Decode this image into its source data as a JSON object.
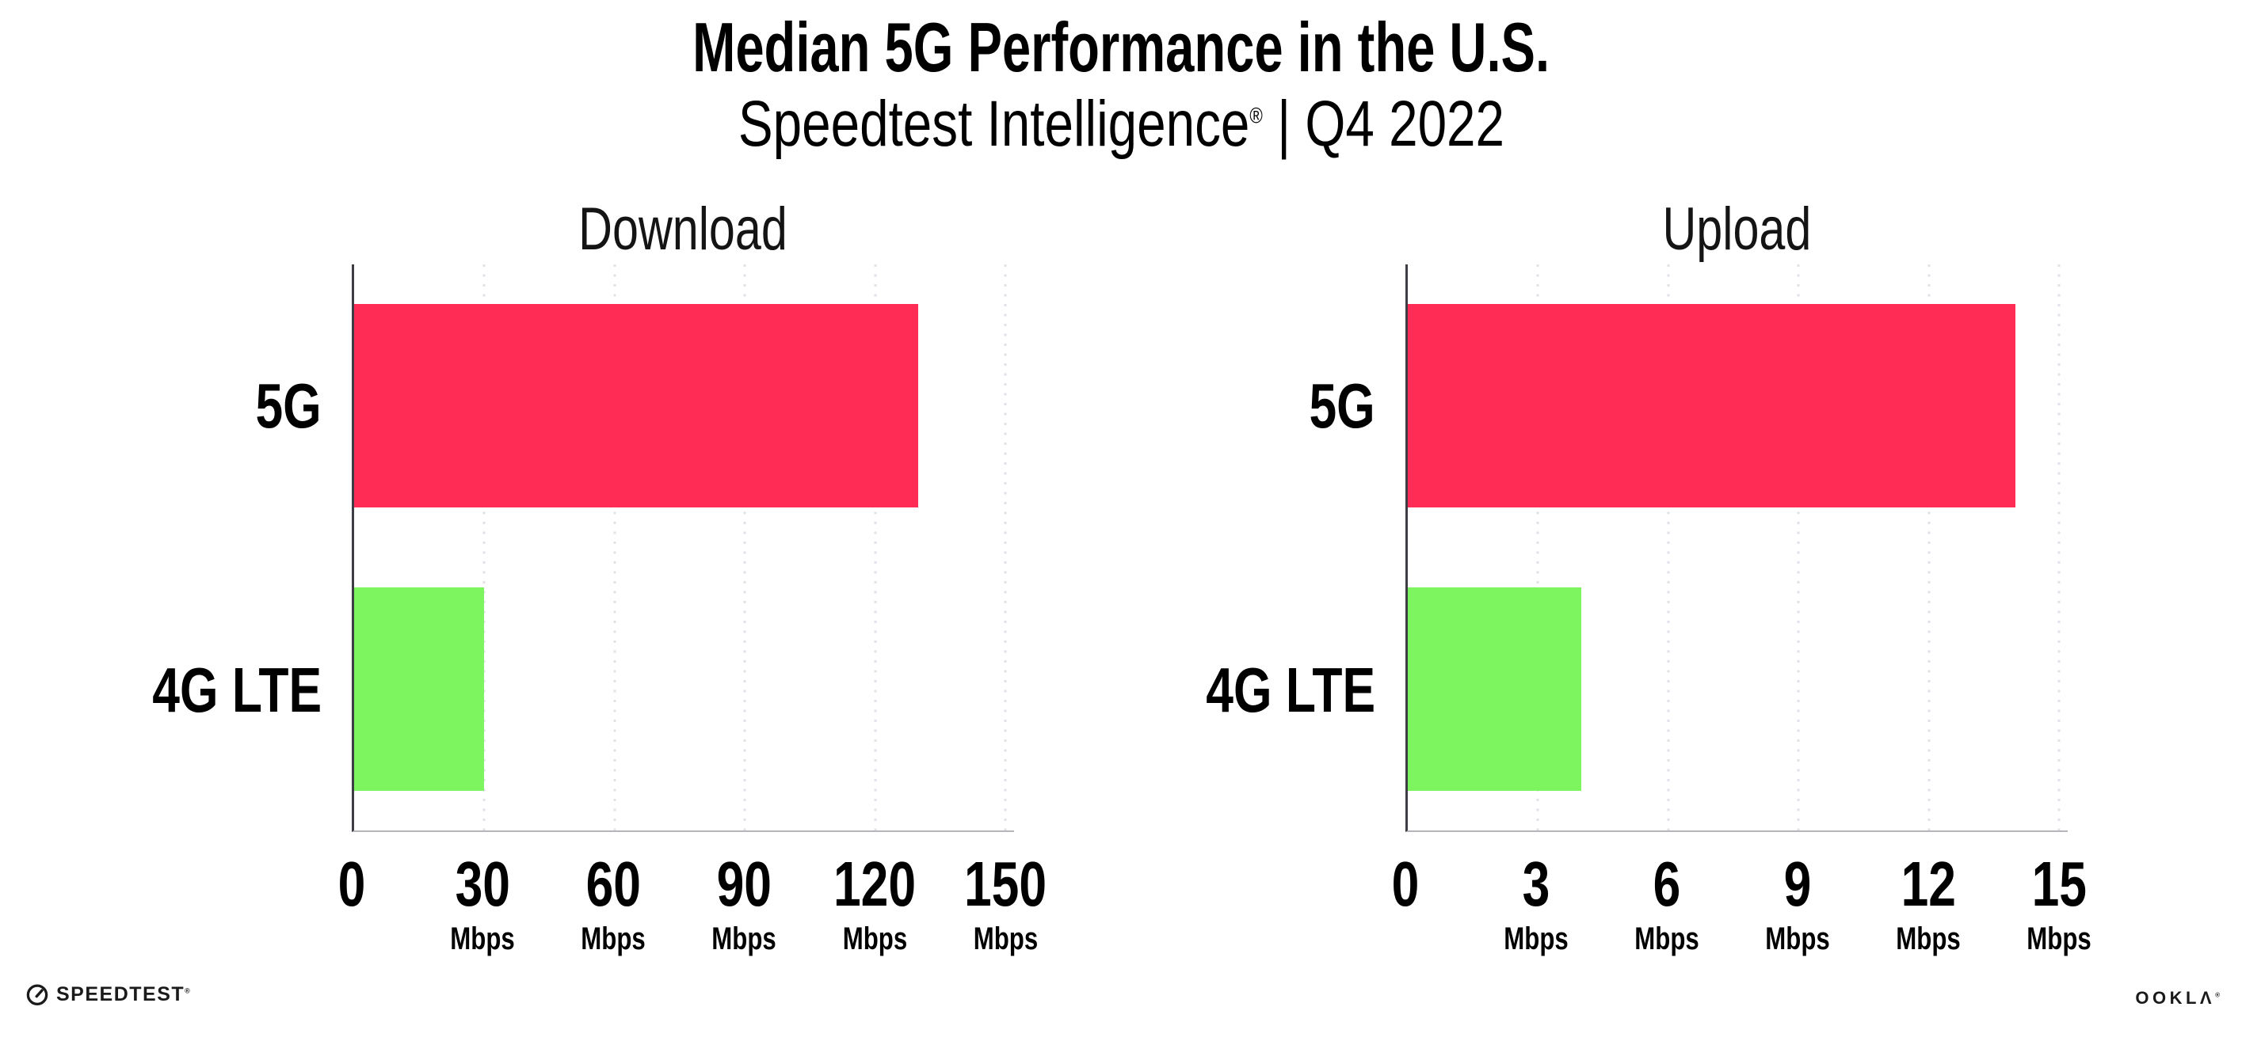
{
  "header": {
    "title": "Median 5G Performance in the U.S.",
    "subtitle_brand": "Speedtest Intelligence",
    "subtitle_mark": "®",
    "subtitle_rest": " | Q4 2022"
  },
  "chart_data": [
    {
      "type": "bar",
      "orientation": "horizontal",
      "title": "Download",
      "categories": [
        "5G",
        "4G LTE"
      ],
      "values": [
        130,
        30
      ],
      "unit": "Mbps",
      "xlim": [
        0,
        150
      ],
      "xticks": [
        {
          "value": 0,
          "label": "0",
          "unit": ""
        },
        {
          "value": 30,
          "label": "30",
          "unit": "Mbps"
        },
        {
          "value": 60,
          "label": "60",
          "unit": "Mbps"
        },
        {
          "value": 90,
          "label": "90",
          "unit": "Mbps"
        },
        {
          "value": 120,
          "label": "120",
          "unit": "Mbps"
        },
        {
          "value": 150,
          "label": "150",
          "unit": "Mbps"
        }
      ],
      "bar_colors": [
        "#ff2d55",
        "#7df55f"
      ],
      "grid": "dotted-vertical",
      "legend": "none"
    },
    {
      "type": "bar",
      "orientation": "horizontal",
      "title": "Upload",
      "categories": [
        "5G",
        "4G LTE"
      ],
      "values": [
        14,
        4
      ],
      "unit": "Mbps",
      "xlim": [
        0,
        15
      ],
      "xticks": [
        {
          "value": 0,
          "label": "0",
          "unit": ""
        },
        {
          "value": 3,
          "label": "3",
          "unit": "Mbps"
        },
        {
          "value": 6,
          "label": "6",
          "unit": "Mbps"
        },
        {
          "value": 9,
          "label": "9",
          "unit": "Mbps"
        },
        {
          "value": 12,
          "label": "12",
          "unit": "Mbps"
        },
        {
          "value": 15,
          "label": "15",
          "unit": "Mbps"
        }
      ],
      "bar_colors": [
        "#ff2d55",
        "#7df55f"
      ],
      "grid": "dotted-vertical",
      "legend": "none"
    }
  ],
  "footer": {
    "speedtest_text": "SPEEDTEST",
    "speedtest_mark": "®",
    "ookla_text": "OOKLA",
    "ookla_mark": "®"
  }
}
